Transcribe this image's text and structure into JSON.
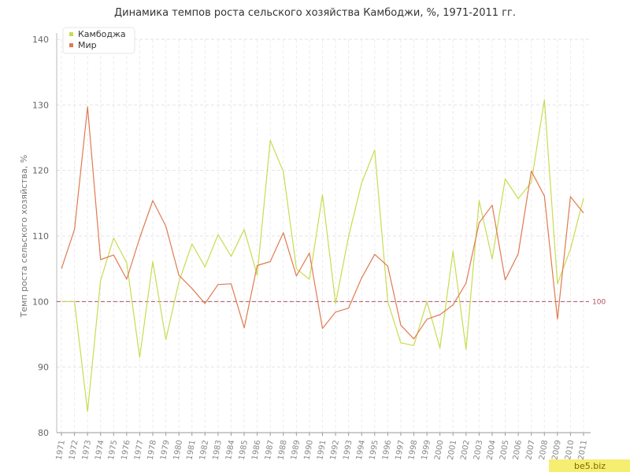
{
  "chart_data": {
    "type": "line",
    "title": "Динамика темпов роста сельского хозяйства Камбоджи, %, 1971-2011 гг.",
    "ylabel": "Темп роста сельского хозяйства, %",
    "xlabel": "",
    "ylim": [
      80,
      140
    ],
    "yticks": [
      80,
      90,
      100,
      110,
      120,
      130,
      140
    ],
    "grid": true,
    "legend_position": "top-left",
    "reference_line": {
      "value": 100,
      "label": "100",
      "color": "#b05060"
    },
    "x": [
      "1971",
      "1972",
      "1973",
      "1974",
      "1975",
      "1976",
      "1977",
      "1978",
      "1979",
      "1980",
      "1981",
      "1982",
      "1983",
      "1984",
      "1985",
      "1986",
      "1987",
      "1988",
      "1989",
      "1990",
      "1991",
      "1992",
      "1993",
      "1994",
      "1995",
      "1996",
      "1997",
      "1998",
      "1999",
      "2000",
      "2001",
      "2002",
      "2003",
      "2004",
      "2005",
      "2006",
      "2007",
      "2008",
      "2009",
      "2010",
      "2011"
    ],
    "series": [
      {
        "name": "Камбоджа",
        "color": "#c8dc50",
        "values": [
          100.0,
          100.0,
          83.2,
          103.2,
          109.7,
          105.9,
          91.5,
          106.1,
          94.2,
          103.0,
          108.8,
          105.3,
          110.2,
          106.9,
          111.0,
          104.0,
          124.6,
          119.8,
          105.0,
          103.4,
          116.3,
          99.7,
          109.9,
          118.1,
          123.1,
          100.0,
          93.7,
          93.3,
          100.0,
          92.9,
          107.7,
          92.7,
          115.4,
          106.5,
          118.7,
          115.7,
          118.2,
          130.8,
          102.7,
          108.0,
          115.8
        ]
      },
      {
        "name": "Мир",
        "color": "#e07a50",
        "values": [
          105.0,
          111.0,
          129.7,
          106.4,
          107.1,
          103.4,
          109.7,
          115.4,
          111.5,
          104.0,
          102.0,
          99.7,
          102.6,
          102.7,
          96.0,
          105.5,
          106.1,
          110.5,
          103.9,
          107.4,
          95.9,
          98.4,
          99.0,
          103.6,
          107.2,
          105.4,
          96.4,
          94.3,
          97.3,
          98.0,
          99.5,
          102.8,
          112.0,
          114.7,
          103.3,
          107.3,
          119.9,
          116.1,
          97.3,
          116.0,
          113.5
        ]
      }
    ]
  },
  "watermark": "be5.biz"
}
